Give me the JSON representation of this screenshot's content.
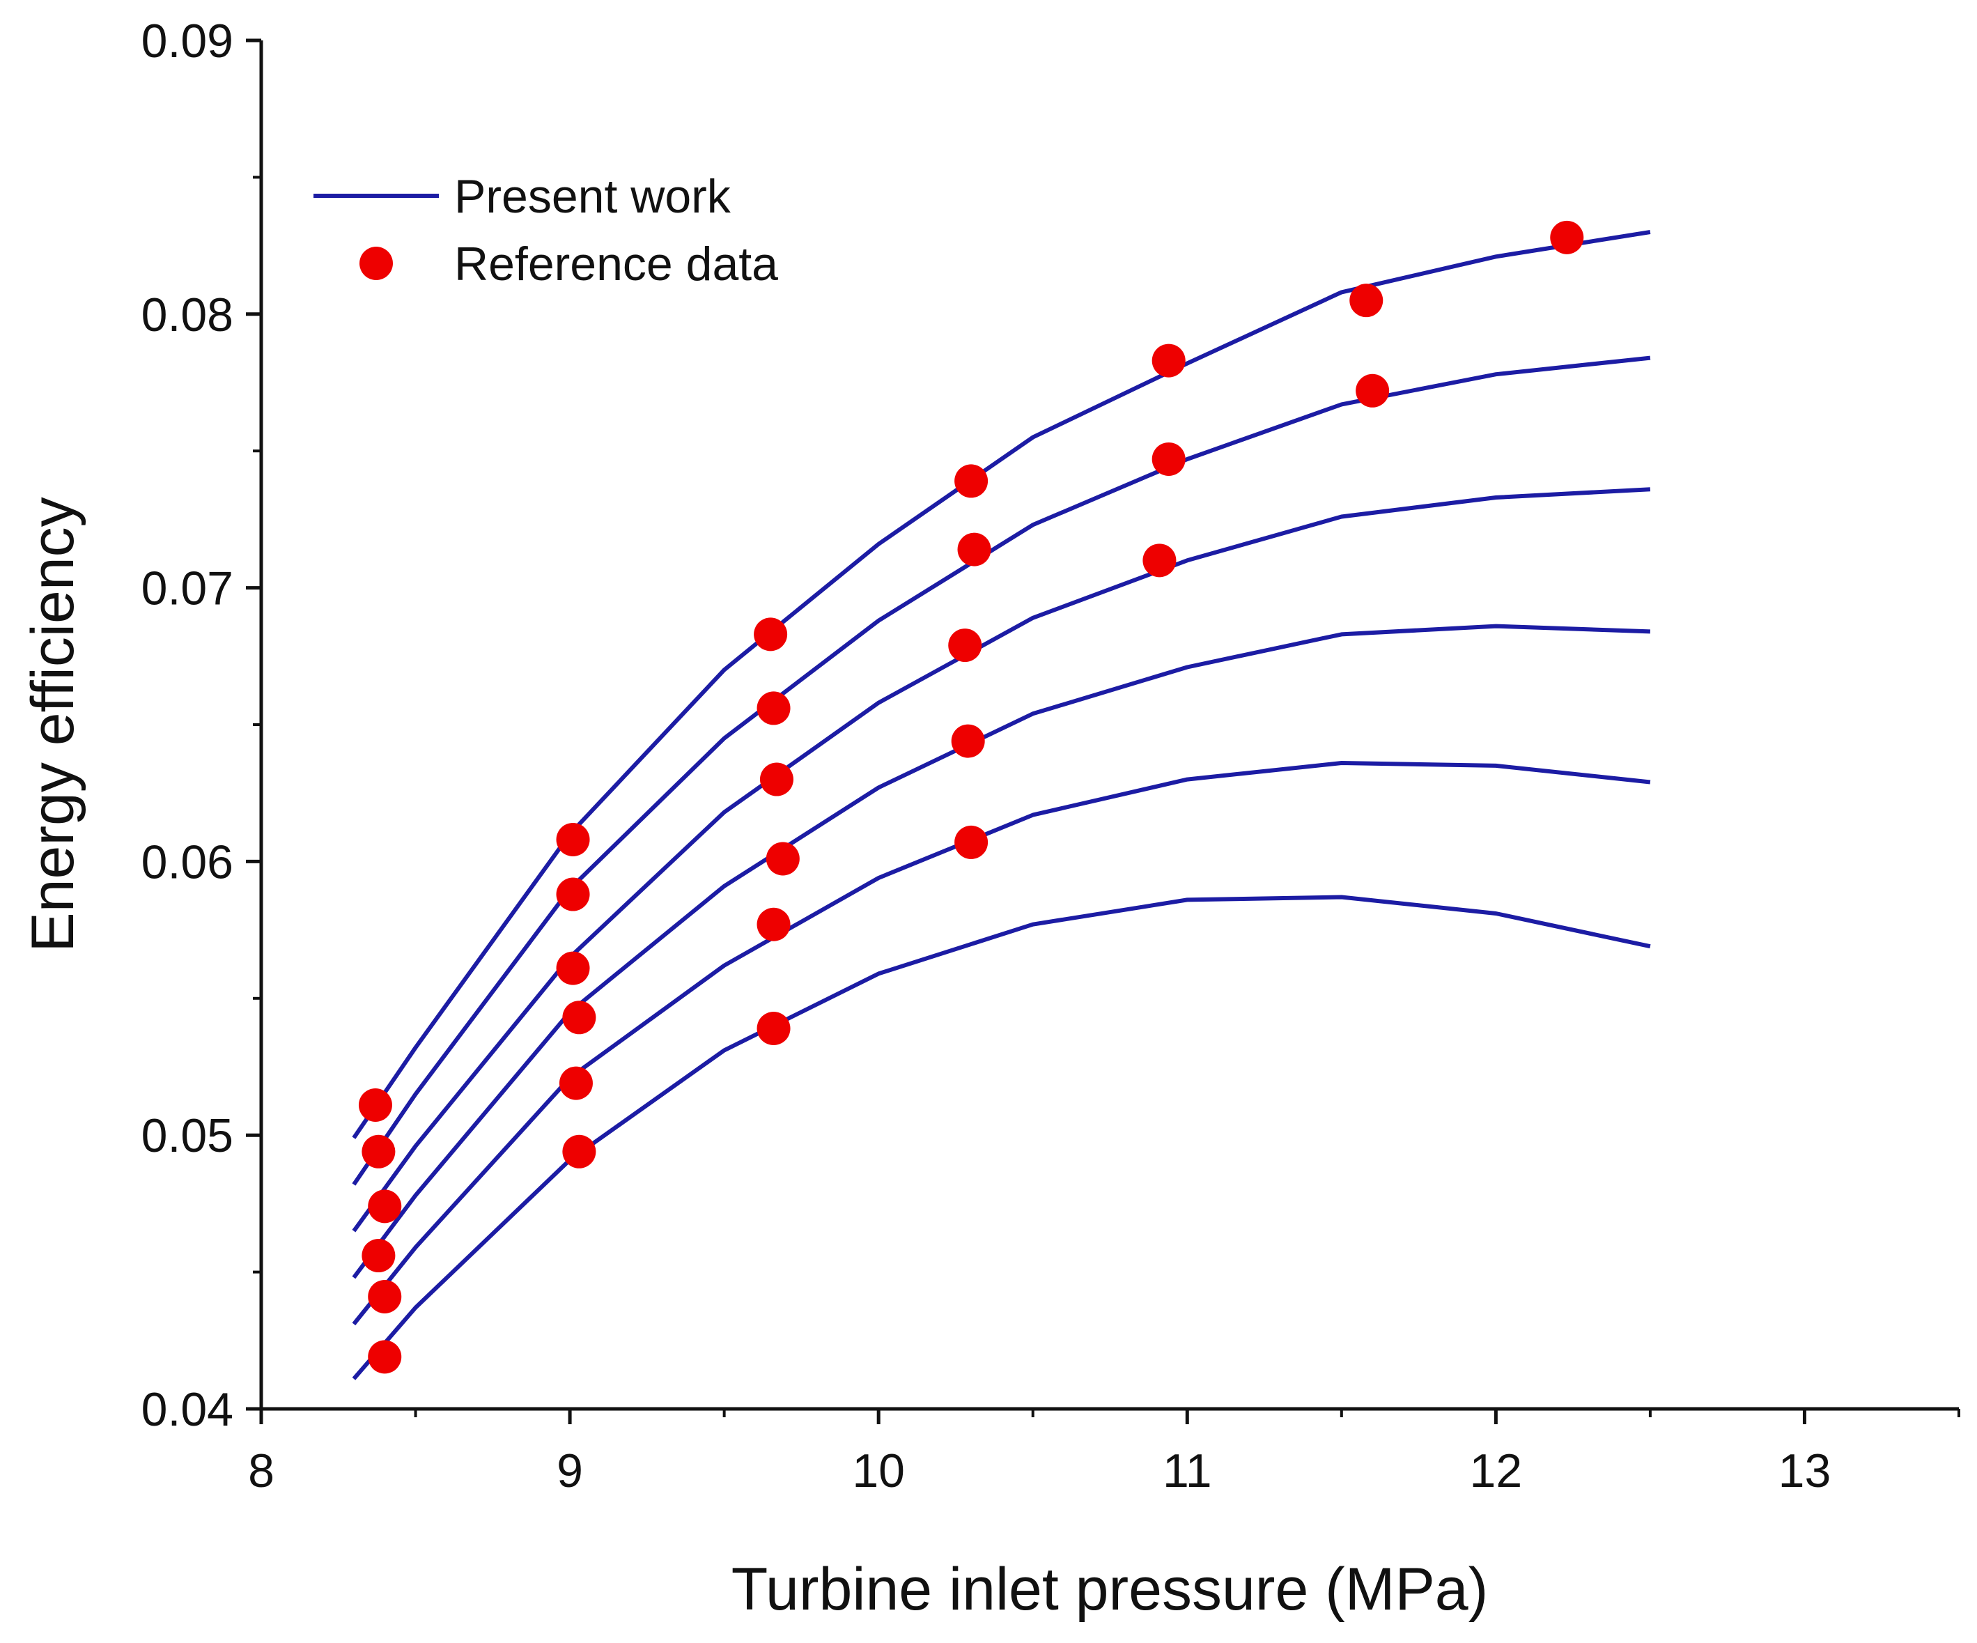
{
  "chart_data": {
    "type": "line",
    "title": "",
    "xlabel": "Turbine inlet pressure (MPa)",
    "ylabel": "Energy efficiency",
    "xlim": [
      8,
      13.5
    ],
    "ylim": [
      0.04,
      0.09
    ],
    "xticks": [
      8,
      9,
      10,
      11,
      12,
      13
    ],
    "xtick_labels": [
      "8",
      "9",
      "10",
      "11",
      "12",
      "13"
    ],
    "yticks": [
      0.04,
      0.05,
      0.06,
      0.07,
      0.08,
      0.09
    ],
    "ytick_labels": [
      "0.04",
      "0.05",
      "0.06",
      "0.07",
      "0.08",
      "0.09"
    ],
    "grid": false,
    "legend": {
      "position": "top-left",
      "entries": [
        {
          "label": "Present work",
          "kind": "line",
          "color": "#1c1ca4"
        },
        {
          "label": "Reference data",
          "kind": "marker",
          "color": "#ee0000"
        }
      ]
    },
    "series": [
      {
        "name": "Present work 1",
        "kind": "line",
        "color": "#1c1ca4",
        "x": [
          8.3,
          8.5,
          9.0,
          9.5,
          10.0,
          10.5,
          11.0,
          11.5,
          12.0,
          12.5
        ],
        "y": [
          0.0499,
          0.0532,
          0.061,
          0.067,
          0.0716,
          0.0755,
          0.0782,
          0.0808,
          0.0821,
          0.083
        ]
      },
      {
        "name": "Present work 2",
        "kind": "line",
        "color": "#1c1ca4",
        "x": [
          8.3,
          8.5,
          9.0,
          9.5,
          10.0,
          10.5,
          11.0,
          11.5,
          12.0,
          12.5
        ],
        "y": [
          0.0482,
          0.0515,
          0.059,
          0.0645,
          0.0688,
          0.0723,
          0.0747,
          0.0767,
          0.0778,
          0.0784
        ]
      },
      {
        "name": "Present work 3",
        "kind": "line",
        "color": "#1c1ca4",
        "x": [
          8.3,
          8.5,
          9.0,
          9.5,
          10.0,
          10.5,
          11.0,
          11.5,
          12.0,
          12.5
        ],
        "y": [
          0.0465,
          0.0496,
          0.0565,
          0.0618,
          0.0658,
          0.0689,
          0.071,
          0.0726,
          0.0733,
          0.0736
        ]
      },
      {
        "name": "Present work 4",
        "kind": "line",
        "color": "#1c1ca4",
        "x": [
          8.3,
          8.5,
          9.0,
          9.5,
          10.0,
          10.5,
          11.0,
          11.5,
          12.0,
          12.5
        ],
        "y": [
          0.0448,
          0.0478,
          0.0545,
          0.0591,
          0.0627,
          0.0654,
          0.0671,
          0.0683,
          0.0686,
          0.0684
        ]
      },
      {
        "name": "Present work 5",
        "kind": "line",
        "color": "#1c1ca4",
        "x": [
          8.3,
          8.5,
          9.0,
          9.5,
          10.0,
          10.5,
          11.0,
          11.5,
          12.0,
          12.5
        ],
        "y": [
          0.0431,
          0.0459,
          0.0521,
          0.0562,
          0.0594,
          0.0617,
          0.063,
          0.0636,
          0.0635,
          0.0629
        ]
      },
      {
        "name": "Present work 6",
        "kind": "line",
        "color": "#1c1ca4",
        "x": [
          8.3,
          8.5,
          9.0,
          9.5,
          10.0,
          10.5,
          11.0,
          11.5,
          12.0,
          12.5
        ],
        "y": [
          0.0411,
          0.0437,
          0.0491,
          0.0531,
          0.0559,
          0.0577,
          0.0586,
          0.0587,
          0.0581,
          0.0569
        ]
      },
      {
        "name": "Reference data",
        "kind": "scatter",
        "color": "#ee0000",
        "x": [
          8.37,
          9.01,
          9.65,
          10.3,
          10.94,
          11.58,
          12.23,
          8.38,
          9.01,
          9.66,
          10.31,
          10.94,
          11.6,
          8.4,
          9.01,
          9.67,
          10.28,
          10.91,
          8.38,
          9.03,
          9.69,
          10.29,
          8.4,
          9.02,
          9.66,
          10.3,
          8.4,
          9.03,
          9.66
        ],
        "y": [
          0.0511,
          0.0608,
          0.0683,
          0.0739,
          0.0783,
          0.0805,
          0.0828,
          0.0494,
          0.0588,
          0.0656,
          0.0714,
          0.0747,
          0.0772,
          0.0474,
          0.0561,
          0.063,
          0.0679,
          0.071,
          0.0456,
          0.0543,
          0.0601,
          0.0644,
          0.0441,
          0.0519,
          0.0577,
          0.0607,
          0.0419,
          0.0494,
          0.0539
        ]
      }
    ]
  }
}
